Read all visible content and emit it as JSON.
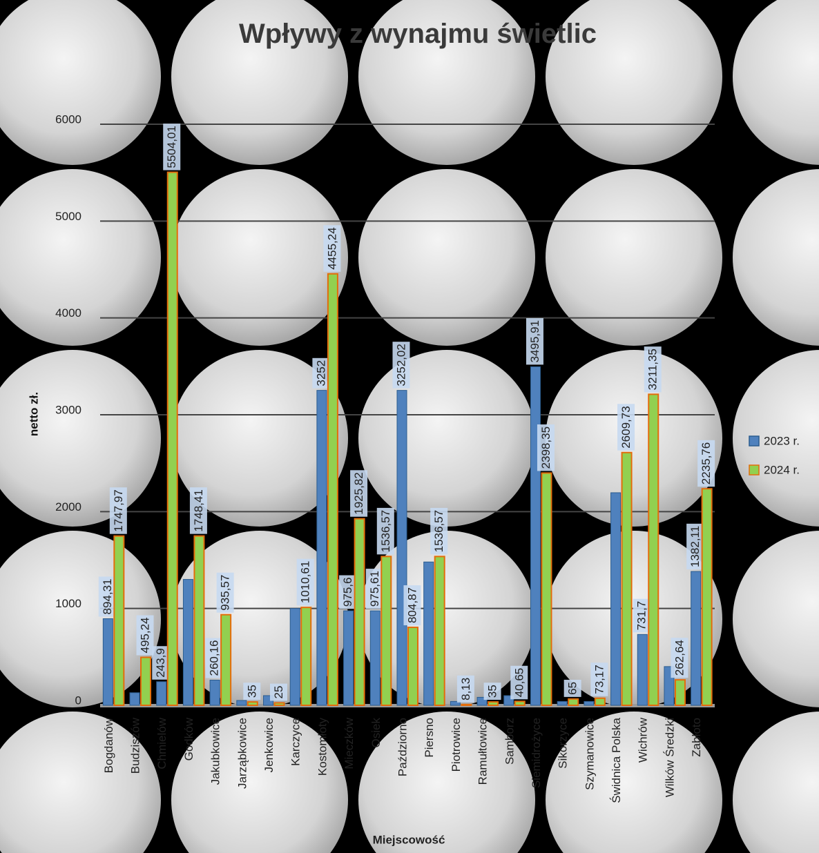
{
  "chart_data": {
    "type": "bar",
    "title": "Wpływy z wynajmu świetlic",
    "y_label": "netto zł.",
    "x_label": "Miejscowość",
    "categories": [
      "Bogdanów",
      "Budziszów",
      "Chmielów",
      "Godków",
      "Jakubkowice",
      "Jarząbkowice",
      "Jenkowice",
      "Karczyce",
      "Kostomłoty",
      "Mieczków",
      "Osiek",
      "Paździorno",
      "Piersno",
      "Piotrowice",
      "Ramułtowice",
      "Samborz",
      "Siemidrożyce",
      "Sikorzyce",
      "Szymanowice",
      "Świdnica Polska",
      "Wichrów",
      "Wilków Średzki",
      "Zabłoto"
    ],
    "series": [
      {
        "name": "2023 r.",
        "color": "#4f81bd",
        "values": [
          894.31,
          130,
          243.9,
          1300,
          260.16,
          50,
          100,
          1000,
          3252,
          975.6,
          975.61,
          3252.02,
          1480,
          40,
          82.6,
          100,
          3495.91,
          40,
          40,
          2195,
          731.7,
          400,
          1382.11
        ],
        "value_labels": [
          "894,31",
          null,
          "243,9",
          null,
          "260,16",
          null,
          null,
          null,
          "3252",
          "975,6",
          "975,61",
          "3252,02",
          null,
          null,
          null,
          null,
          "3495,91",
          null,
          null,
          null,
          "731,7",
          null,
          "1382,11"
        ]
      },
      {
        "name": "2024 r.",
        "color": "#92d050",
        "stroke": "#e46c0a",
        "values": [
          1747.97,
          495.24,
          5504.01,
          1748.41,
          935.57,
          35,
          25,
          1010.61,
          4455.24,
          1925.82,
          1536.57,
          804.87,
          1536.57,
          8.13,
          35,
          40.65,
          2398.35,
          65,
          73.17,
          2609.73,
          3211.35,
          262.64,
          2235.76
        ],
        "value_labels": [
          "1747,97",
          "495,24",
          "5504,01",
          "1748,41",
          "935,57",
          "35",
          "25",
          "1010,61",
          "4455,24",
          "1925,82",
          "1536,57",
          "804,87",
          "1536,57",
          "8,13",
          "35",
          "40,65",
          "2398,35",
          "65",
          "73,17",
          "2609,73",
          "3211,35",
          "262,64",
          "2235,76"
        ]
      }
    ],
    "ylim": [
      0,
      6000
    ],
    "yticks": [
      0,
      1000,
      2000,
      3000,
      4000,
      5000,
      6000
    ],
    "grid": true,
    "legend": "right"
  }
}
